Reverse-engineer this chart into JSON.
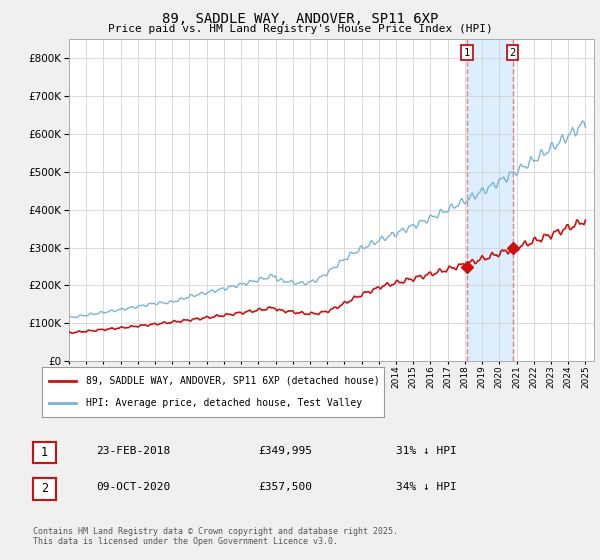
{
  "title": "89, SADDLE WAY, ANDOVER, SP11 6XP",
  "subtitle": "Price paid vs. HM Land Registry's House Price Index (HPI)",
  "hpi_label": "HPI: Average price, detached house, Test Valley",
  "price_label": "89, SADDLE WAY, ANDOVER, SP11 6XP (detached house)",
  "ylim": [
    0,
    850000
  ],
  "yticks": [
    0,
    100000,
    200000,
    300000,
    400000,
    500000,
    600000,
    700000,
    800000
  ],
  "year_start": 1995,
  "year_end": 2025,
  "hpi_color": "#7ab4d8",
  "price_color": "#cc1111",
  "marker1_year": 2018.12,
  "marker2_year": 2020.77,
  "marker1_label": "23-FEB-2018",
  "marker2_label": "09-OCT-2020",
  "marker1_price_str": "£349,995",
  "marker2_price_str": "£357,500",
  "marker1_pct": "31% ↓ HPI",
  "marker2_pct": "34% ↓ HPI",
  "footer": "Contains HM Land Registry data © Crown copyright and database right 2025.\nThis data is licensed under the Open Government Licence v3.0.",
  "fig_bg_color": "#f0f0f0",
  "plot_bg_color": "#ffffff",
  "grid_color": "#cccccc",
  "highlight_color": "#ddeeff",
  "marker_box_color": "#cc1111"
}
